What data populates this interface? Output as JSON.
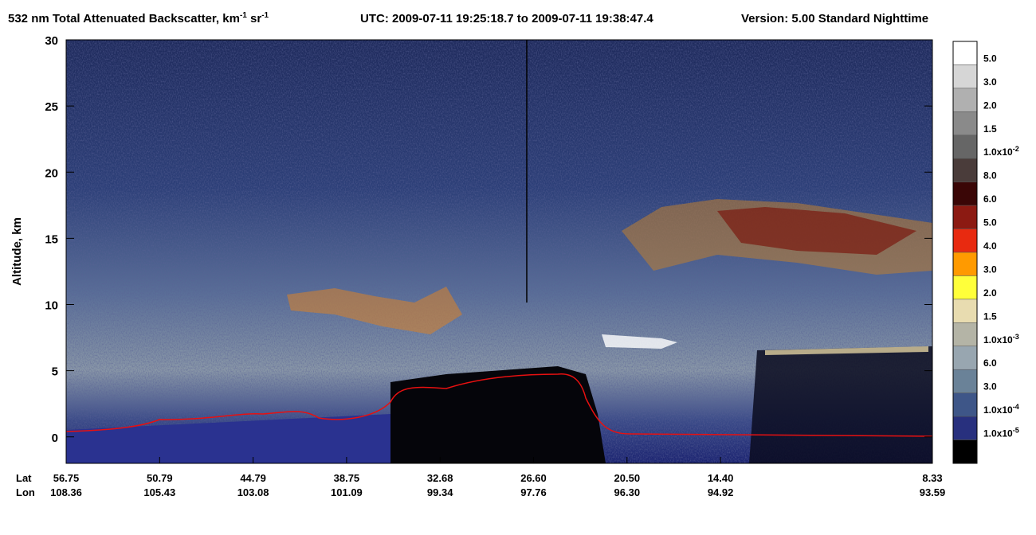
{
  "chart_data": {
    "type": "curtain",
    "title": {
      "parts": [
        "532 nm Total Attenuated Backscatter, km",
        "-1",
        " sr",
        "-1"
      ],
      "time": "UTC:  2009-07-11 19:25:18.7  to  2009-07-11 19:38:47.4",
      "version": "Version: 5.00  Standard  Nighttime"
    },
    "ylabel": "Altitude, km",
    "ylim": [
      -2,
      30
    ],
    "yticks": [
      0,
      5,
      10,
      15,
      20,
      25,
      30
    ],
    "x_row_labels": [
      "Lat",
      "Lon"
    ],
    "lat": [
      "56.75",
      "50.79",
      "44.79",
      "38.75",
      "32.68",
      "26.60",
      "20.50",
      "14.40",
      "8.33"
    ],
    "lon": [
      "108.36",
      "105.43",
      "103.08",
      "101.09",
      "99.34",
      "97.76",
      "96.30",
      "94.92",
      "93.59"
    ],
    "colorbar": {
      "colors": [
        "#ffffff",
        "#d6d6d6",
        "#b0b0b0",
        "#8a8a8a",
        "#666666",
        "#4a3c3a",
        "#3a0606",
        "#8c1a12",
        "#e82a10",
        "#ff9a00",
        "#ffff3a",
        "#e8dcb0",
        "#b4b4a6",
        "#98a6b0",
        "#6a8298",
        "#3e5688",
        "#28307e",
        "#000000"
      ],
      "labels": [
        "5.0",
        "3.0",
        "2.0",
        "1.5",
        {
          "text": "1.0x10",
          "sup": "-2"
        },
        "8.0",
        "6.0",
        "5.0",
        "4.0",
        "3.0",
        "2.0",
        "1.5",
        {
          "text": "1.0x10",
          "sup": "-3"
        },
        "6.0",
        "3.0",
        {
          "text": "1.0x10",
          "sup": "-4"
        },
        {
          "text": "1.0x10",
          "sup": "-5"
        }
      ]
    }
  }
}
